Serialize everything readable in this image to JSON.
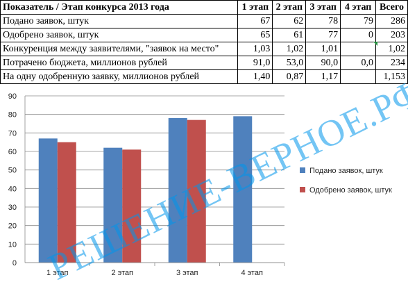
{
  "table": {
    "header": [
      "Показатель / Этап конкурса 2013 года",
      "1 этап",
      "2 этап",
      "3 этап",
      "4 этап",
      "Всего"
    ],
    "rows": [
      [
        "Подано заявок, штук",
        "67",
        "62",
        "78",
        "79",
        "286"
      ],
      [
        "Одобрено заявок, штук",
        "65",
        "61",
        "77",
        "0",
        "203"
      ],
      [
        "Конкуренция между заявителями, \"заявок на место\"",
        "1,03",
        "1,02",
        "1,01",
        "",
        "1,02"
      ],
      [
        "Потрачено бюджета, миллионов рублей",
        "91,0",
        "53,0",
        "90,0",
        "0,0",
        "234"
      ],
      [
        "На одну одобренную заявку, миллионов рублей",
        "1,40",
        "0,87",
        "1,17",
        "",
        "1,153"
      ]
    ]
  },
  "chart_data": {
    "type": "bar",
    "categories": [
      "1 этап",
      "2 этап",
      "3 этап",
      "4 этап"
    ],
    "series": [
      {
        "name": "Подано заявок, штук",
        "values": [
          67,
          62,
          78,
          79
        ],
        "color": "#4f81bd"
      },
      {
        "name": "Одобрено заявок, штук",
        "values": [
          65,
          61,
          77,
          0
        ],
        "color": "#c0504d"
      }
    ],
    "ylim": [
      0,
      90
    ],
    "yticks": [
      0,
      10,
      20,
      30,
      40,
      50,
      60,
      70,
      80,
      90
    ],
    "grid": true,
    "legend_position": "right"
  },
  "watermark": "РЕШЕНИЕ-ВЕРНОЕ.РФ",
  "colors": {
    "flag": "#1f8f3a",
    "watermark": "#0096eb"
  }
}
